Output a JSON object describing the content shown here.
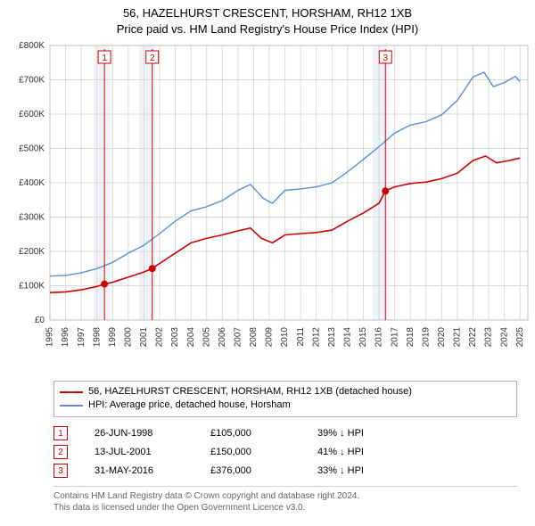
{
  "title_line1": "56, HAZELHURST CRESCENT, HORSHAM, RH12 1XB",
  "title_line2": "Price paid vs. HM Land Registry's House Price Index (HPI)",
  "chart": {
    "type": "line",
    "background_color": "#ffffff",
    "grid_color": "#d9d9d9",
    "plot_border_color": "#bfbfbf",
    "x_years": [
      1995,
      1996,
      1997,
      1998,
      1999,
      2000,
      2001,
      2002,
      2003,
      2004,
      2005,
      2006,
      2007,
      2008,
      2009,
      2010,
      2011,
      2012,
      2013,
      2014,
      2015,
      2016,
      2017,
      2018,
      2019,
      2020,
      2021,
      2022,
      2023,
      2024,
      2025
    ],
    "x_range": [
      1995,
      2025.5
    ],
    "y_range": [
      0,
      800000
    ],
    "y_ticks": [
      0,
      100000,
      200000,
      300000,
      400000,
      500000,
      600000,
      700000,
      800000
    ],
    "y_tick_labels": [
      "£0",
      "£100K",
      "£200K",
      "£300K",
      "£400K",
      "£500K",
      "£600K",
      "£700K",
      "£800K"
    ],
    "band_color": "#eef3fa",
    "bands_x": [
      [
        1997.8,
        1998.8
      ],
      [
        2000.7,
        2001.7
      ],
      [
        2015.6,
        2016.6
      ]
    ],
    "series": [
      {
        "name": "property_price",
        "color": "#d00000",
        "line_width": 1.6,
        "points": [
          [
            1995.0,
            80000
          ],
          [
            1996.0,
            82000
          ],
          [
            1997.0,
            88000
          ],
          [
            1998.0,
            98000
          ],
          [
            1998.5,
            105000
          ],
          [
            1999.0,
            110000
          ],
          [
            2000.0,
            125000
          ],
          [
            2001.0,
            140000
          ],
          [
            2001.5,
            150000
          ],
          [
            2002.0,
            165000
          ],
          [
            2003.0,
            195000
          ],
          [
            2004.0,
            225000
          ],
          [
            2005.0,
            238000
          ],
          [
            2006.0,
            248000
          ],
          [
            2007.0,
            260000
          ],
          [
            2007.8,
            268000
          ],
          [
            2008.5,
            238000
          ],
          [
            2009.2,
            225000
          ],
          [
            2010.0,
            248000
          ],
          [
            2011.0,
            252000
          ],
          [
            2012.0,
            255000
          ],
          [
            2013.0,
            262000
          ],
          [
            2014.0,
            288000
          ],
          [
            2015.0,
            312000
          ],
          [
            2016.0,
            340000
          ],
          [
            2016.4,
            376000
          ],
          [
            2017.0,
            388000
          ],
          [
            2018.0,
            398000
          ],
          [
            2019.0,
            402000
          ],
          [
            2020.0,
            412000
          ],
          [
            2021.0,
            428000
          ],
          [
            2022.0,
            465000
          ],
          [
            2022.8,
            478000
          ],
          [
            2023.5,
            458000
          ],
          [
            2024.0,
            462000
          ],
          [
            2025.0,
            472000
          ]
        ]
      },
      {
        "name": "hpi_detached_horsham",
        "color": "#5b8fd6",
        "line_width": 1.4,
        "points": [
          [
            1995.0,
            128000
          ],
          [
            1996.0,
            130000
          ],
          [
            1997.0,
            138000
          ],
          [
            1998.0,
            150000
          ],
          [
            1999.0,
            168000
          ],
          [
            2000.0,
            195000
          ],
          [
            2001.0,
            218000
          ],
          [
            2002.0,
            252000
          ],
          [
            2003.0,
            288000
          ],
          [
            2004.0,
            318000
          ],
          [
            2005.0,
            330000
          ],
          [
            2006.0,
            348000
          ],
          [
            2007.0,
            378000
          ],
          [
            2007.8,
            395000
          ],
          [
            2008.6,
            355000
          ],
          [
            2009.2,
            340000
          ],
          [
            2010.0,
            378000
          ],
          [
            2011.0,
            382000
          ],
          [
            2012.0,
            388000
          ],
          [
            2013.0,
            400000
          ],
          [
            2014.0,
            432000
          ],
          [
            2015.0,
            468000
          ],
          [
            2016.0,
            505000
          ],
          [
            2017.0,
            545000
          ],
          [
            2018.0,
            568000
          ],
          [
            2019.0,
            578000
          ],
          [
            2020.0,
            598000
          ],
          [
            2021.0,
            640000
          ],
          [
            2022.0,
            708000
          ],
          [
            2022.7,
            722000
          ],
          [
            2023.3,
            680000
          ],
          [
            2024.0,
            692000
          ],
          [
            2024.7,
            710000
          ],
          [
            2025.0,
            695000
          ]
        ]
      }
    ],
    "sale_markers": [
      {
        "n": "1",
        "year": 1998.48,
        "price": 105000
      },
      {
        "n": "2",
        "year": 2001.53,
        "price": 150000
      },
      {
        "n": "3",
        "year": 2016.41,
        "price": 376000
      }
    ],
    "marker_box_border": "#d00000",
    "marker_box_fill": "#ffffff",
    "marker_dot_color": "#d00000",
    "marker_line_color": "#d00000"
  },
  "legend": {
    "items": [
      {
        "color": "#d00000",
        "label": "56, HAZELHURST CRESCENT, HORSHAM, RH12 1XB (detached house)"
      },
      {
        "color": "#5b8fd6",
        "label": "HPI: Average price, detached house, Horsham"
      }
    ]
  },
  "sales": [
    {
      "n": "1",
      "date": "26-JUN-1998",
      "price": "£105,000",
      "diff": "39% ↓ HPI"
    },
    {
      "n": "2",
      "date": "13-JUL-2001",
      "price": "£150,000",
      "diff": "41% ↓ HPI"
    },
    {
      "n": "3",
      "date": "31-MAY-2016",
      "price": "£376,000",
      "diff": "33% ↓ HPI"
    }
  ],
  "footer_line1": "Contains HM Land Registry data © Crown copyright and database right 2024.",
  "footer_line2": "This data is licensed under the Open Government Licence v3.0."
}
